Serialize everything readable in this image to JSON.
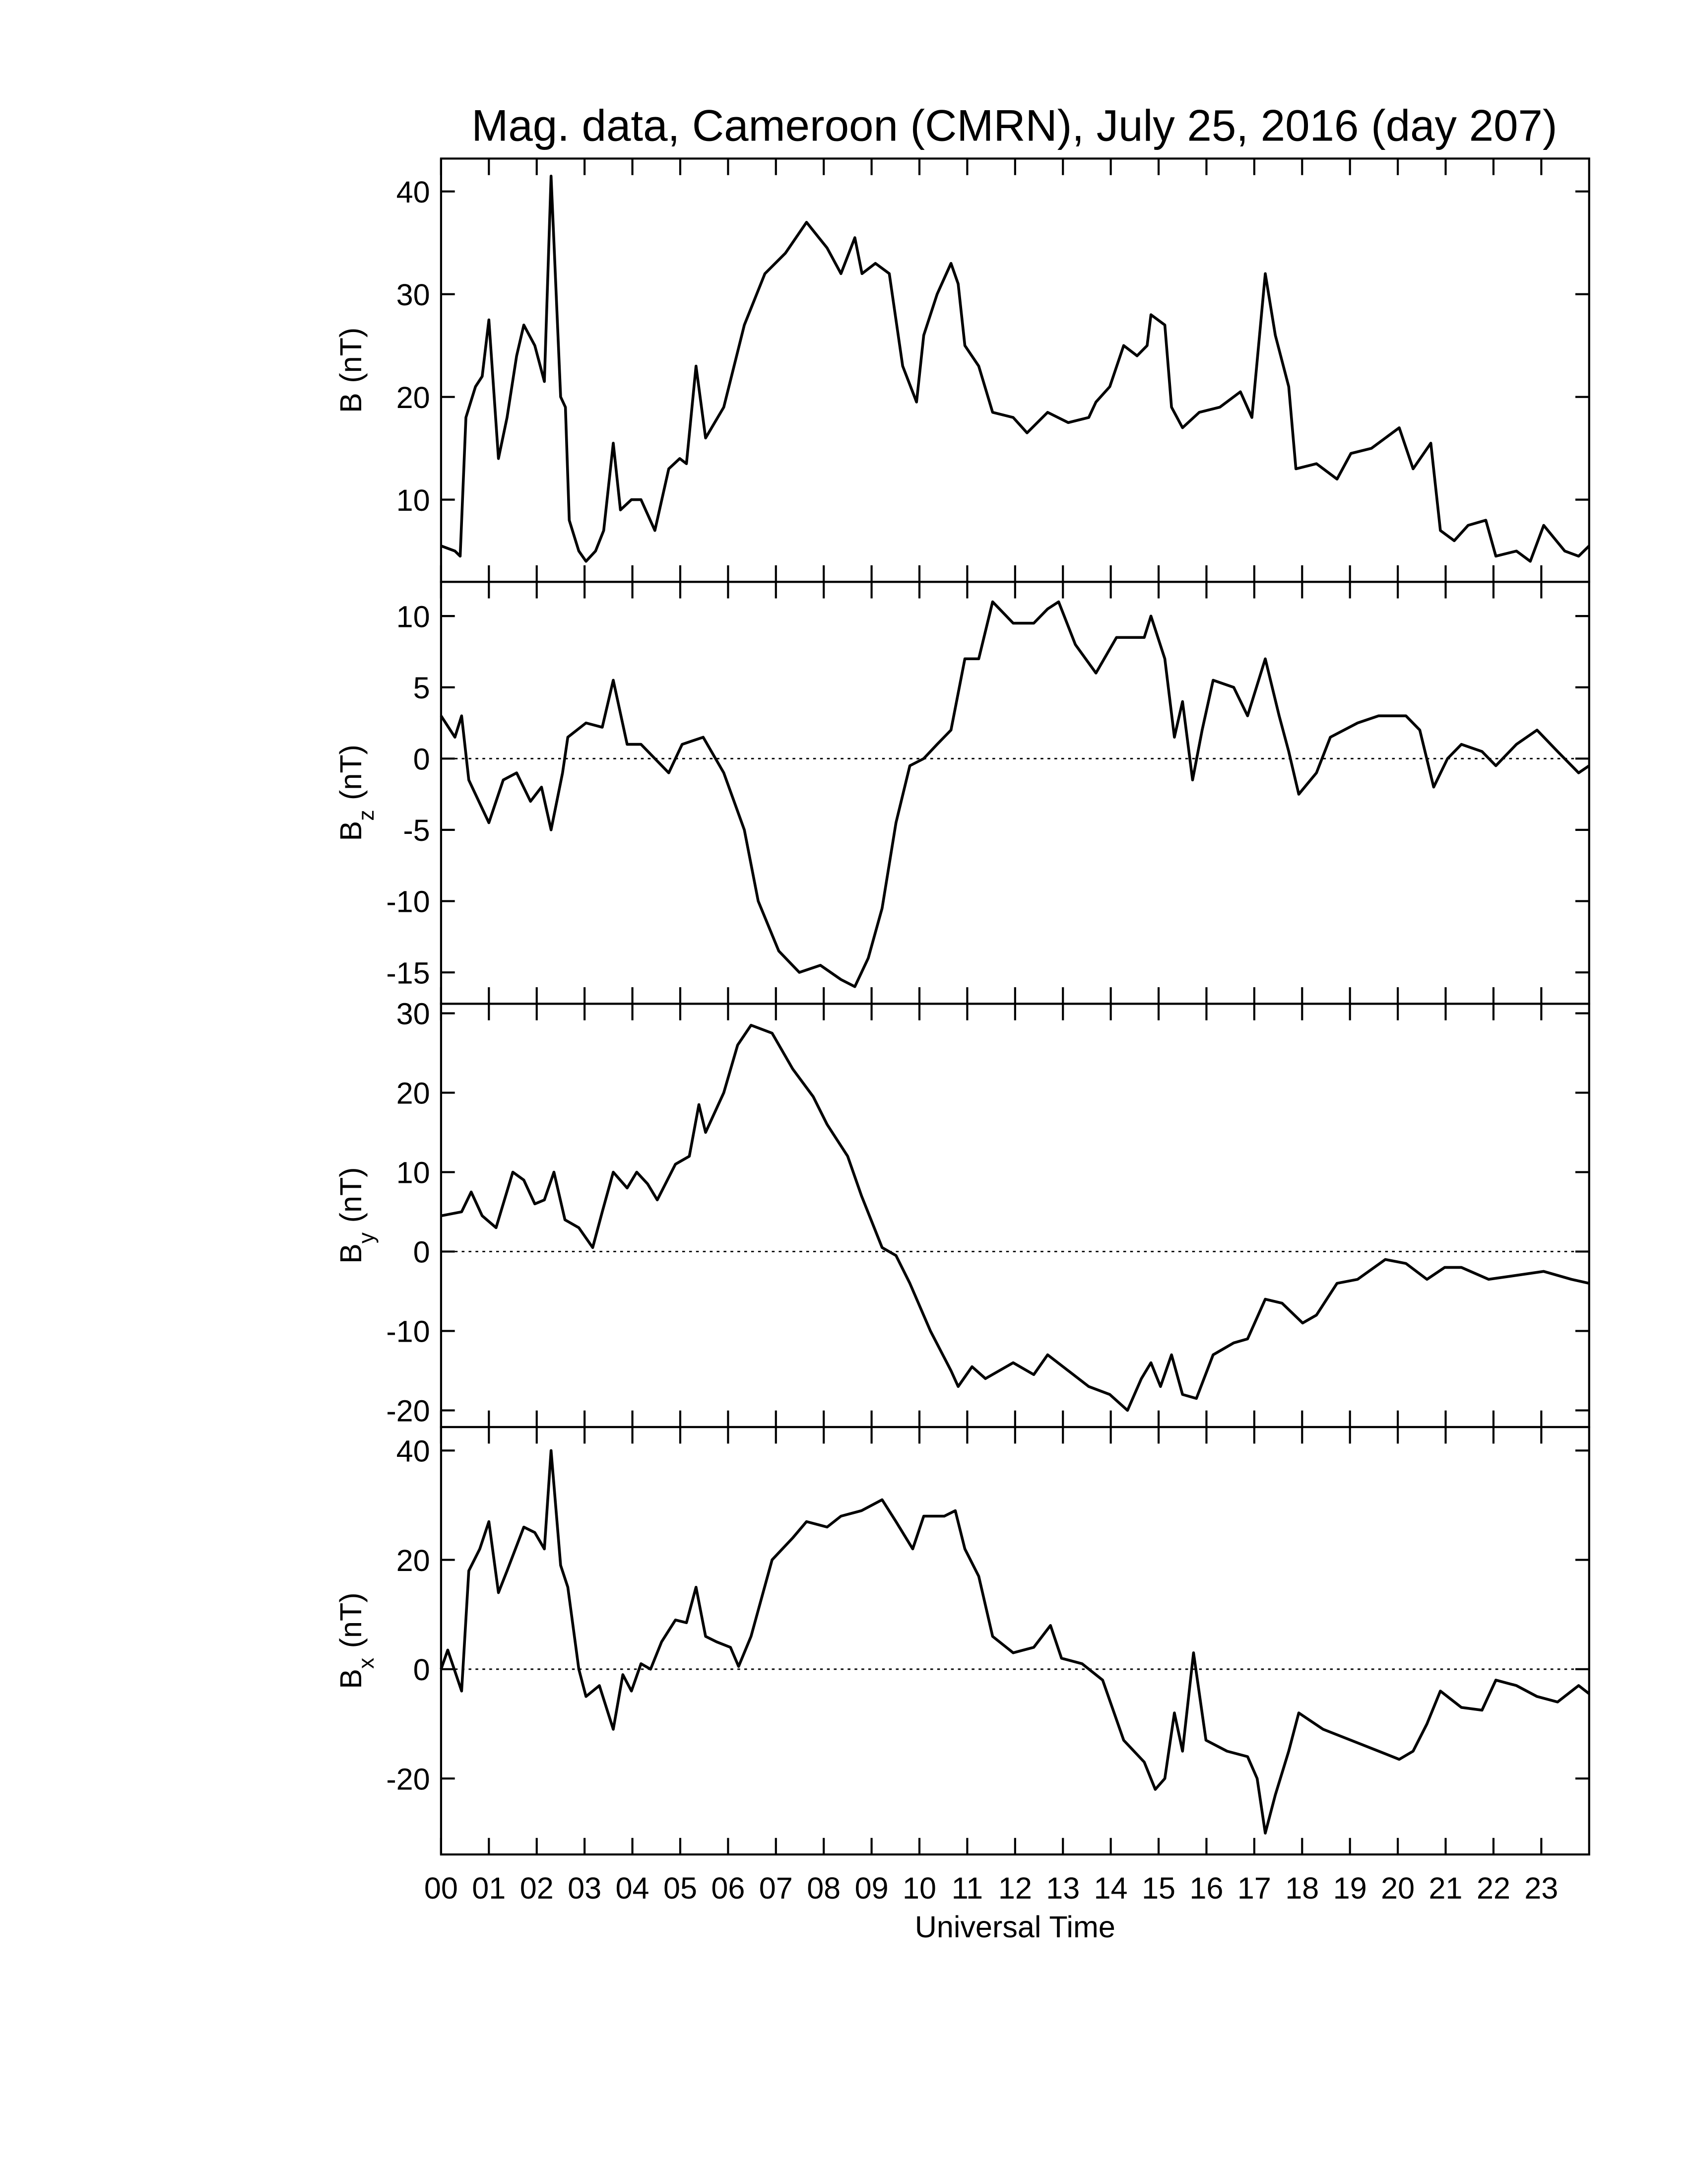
{
  "title": "Mag. data, Cameroon (CMRN), July 25, 2016 (day 207)",
  "chart_data": [
    {
      "type": "line",
      "ylabel": "B",
      "ylabel_unit": "(nT)",
      "xlim": [
        0,
        24
      ],
      "ylim": [
        2,
        43.2
      ],
      "yticks": [
        10,
        20,
        30,
        40
      ],
      "color": "#000000",
      "xticks": [
        {
          "value": 0,
          "label": "00"
        },
        {
          "value": 1,
          "label": "01"
        },
        {
          "value": 2,
          "label": "02"
        },
        {
          "value": 3,
          "label": "03"
        },
        {
          "value": 4,
          "label": "04"
        },
        {
          "value": 5,
          "label": "05"
        },
        {
          "value": 6,
          "label": "06"
        },
        {
          "value": 7,
          "label": "07"
        },
        {
          "value": 8,
          "label": "08"
        },
        {
          "value": 9,
          "label": "09"
        },
        {
          "value": 10,
          "label": "10"
        },
        {
          "value": 11,
          "label": "11"
        },
        {
          "value": 12,
          "label": "12"
        },
        {
          "value": 13,
          "label": "13"
        },
        {
          "value": 14,
          "label": "14"
        },
        {
          "value": 15,
          "label": "15"
        },
        {
          "value": 16,
          "label": "16"
        },
        {
          "value": 17,
          "label": "17"
        },
        {
          "value": 18,
          "label": "18"
        },
        {
          "value": 19,
          "label": "19"
        },
        {
          "value": 20,
          "label": "20"
        },
        {
          "value": 21,
          "label": "21"
        },
        {
          "value": 22,
          "label": "22"
        },
        {
          "value": 23,
          "label": "23"
        }
      ],
      "x": [
        0,
        0.29,
        0.4,
        0.52,
        0.72,
        0.86,
        1.0,
        1.2,
        1.38,
        1.58,
        1.73,
        1.96,
        2.16,
        2.3,
        2.5,
        2.6,
        2.68,
        2.88,
        3.03,
        3.23,
        3.4,
        3.6,
        3.75,
        3.98,
        4.18,
        4.47,
        4.76,
        4.99,
        5.13,
        5.33,
        5.53,
        5.91,
        6.34,
        6.77,
        7.2,
        7.64,
        8.07,
        8.36,
        8.65,
        8.8,
        9.08,
        9.37,
        9.65,
        9.94,
        10.09,
        10.37,
        10.66,
        10.81,
        10.95,
        11.24,
        11.53,
        11.96,
        12.25,
        12.68,
        13.11,
        13.54,
        13.69,
        13.98,
        14.27,
        14.55,
        14.76,
        14.84,
        15.13,
        15.27,
        15.5,
        15.85,
        16.28,
        16.71,
        16.95,
        17.23,
        17.44,
        17.72,
        17.87,
        18.3,
        18.73,
        19.02,
        19.45,
        19.74,
        20.03,
        20.32,
        20.69,
        20.89,
        21.18,
        21.47,
        21.84,
        22.05,
        22.48,
        22.77,
        23.05,
        23.49,
        23.78,
        24
      ],
      "values": [
        5.5,
        5,
        4.5,
        18,
        21,
        22,
        27.5,
        14,
        18,
        24,
        27,
        25,
        21.5,
        41.5,
        20,
        19,
        8,
        5,
        4,
        5,
        7,
        15.5,
        9,
        10,
        10,
        7,
        13,
        14,
        13.5,
        23,
        16,
        19,
        27,
        32,
        34,
        37,
        34.5,
        32,
        35.5,
        32,
        33,
        32,
        23,
        19.5,
        26,
        30,
        33,
        31,
        25,
        23,
        18.5,
        18,
        16.5,
        18.5,
        17.5,
        18,
        19.5,
        21,
        25,
        24,
        25,
        28,
        27,
        19,
        17,
        18.5,
        19,
        20.5,
        18,
        32,
        26,
        21,
        13,
        13.5,
        12,
        14.5,
        15,
        16,
        17,
        13,
        15.5,
        7,
        6,
        7.5,
        8,
        4.5,
        5,
        4,
        7.5,
        5,
        4.5,
        5.5
      ]
    },
    {
      "type": "line",
      "ylabel": "B",
      "ylabel_sub": "z",
      "ylabel_unit": "(nT)",
      "xlim": [
        0,
        24
      ],
      "ylim": [
        -17.2,
        12.4
      ],
      "yticks": [
        -15,
        -10,
        -5,
        0,
        5,
        10
      ],
      "color": "#000000",
      "zero_line": true,
      "xticks": [
        {
          "value": 0,
          "label": "00"
        },
        {
          "value": 1,
          "label": "01"
        },
        {
          "value": 2,
          "label": "02"
        },
        {
          "value": 3,
          "label": "03"
        },
        {
          "value": 4,
          "label": "04"
        },
        {
          "value": 5,
          "label": "05"
        },
        {
          "value": 6,
          "label": "06"
        },
        {
          "value": 7,
          "label": "07"
        },
        {
          "value": 8,
          "label": "08"
        },
        {
          "value": 9,
          "label": "09"
        },
        {
          "value": 10,
          "label": "10"
        },
        {
          "value": 11,
          "label": "11"
        },
        {
          "value": 12,
          "label": "12"
        },
        {
          "value": 13,
          "label": "13"
        },
        {
          "value": 14,
          "label": "14"
        },
        {
          "value": 15,
          "label": "15"
        },
        {
          "value": 16,
          "label": "16"
        },
        {
          "value": 17,
          "label": "17"
        },
        {
          "value": 18,
          "label": "18"
        },
        {
          "value": 19,
          "label": "19"
        },
        {
          "value": 20,
          "label": "20"
        },
        {
          "value": 21,
          "label": "21"
        },
        {
          "value": 22,
          "label": "22"
        },
        {
          "value": 23,
          "label": "23"
        }
      ],
      "x": [
        0,
        0.29,
        0.43,
        0.58,
        0.86,
        1.0,
        1.3,
        1.58,
        1.87,
        2.1,
        2.3,
        2.54,
        2.65,
        3.03,
        3.37,
        3.6,
        3.89,
        4.18,
        4.47,
        4.76,
        5.04,
        5.48,
        5.91,
        6.34,
        6.63,
        7.06,
        7.49,
        7.93,
        8.36,
        8.65,
        8.93,
        9.22,
        9.51,
        9.8,
        10.09,
        10.37,
        10.66,
        10.95,
        11.24,
        11.53,
        11.96,
        12.39,
        12.68,
        12.91,
        13.26,
        13.69,
        14.12,
        14.7,
        14.84,
        15.13,
        15.33,
        15.5,
        15.71,
        15.91,
        16.14,
        16.57,
        16.86,
        17.23,
        17.52,
        17.72,
        17.93,
        18.3,
        18.59,
        19.16,
        19.6,
        20.17,
        20.46,
        20.75,
        21.04,
        21.33,
        21.76,
        22.05,
        22.48,
        22.91,
        23.34,
        23.78,
        24
      ],
      "values": [
        3,
        1.5,
        3,
        -1.5,
        -3.5,
        -4.5,
        -1.5,
        -1,
        -3,
        -2,
        -5,
        -1,
        1.5,
        2.5,
        2.2,
        5.5,
        1,
        1,
        0,
        -1,
        1,
        1.5,
        -1,
        -5,
        -10,
        -13.5,
        -15,
        -14.5,
        -15.5,
        -16,
        -14,
        -10.5,
        -4.5,
        -0.5,
        0,
        1,
        2,
        7,
        7,
        11,
        9.5,
        9.5,
        10.5,
        11,
        8,
        6,
        8.5,
        8.5,
        10,
        7,
        1.5,
        4,
        -1.5,
        2,
        5.5,
        5,
        3,
        7,
        3,
        0.5,
        -2.5,
        -1,
        1.5,
        2.5,
        3,
        3,
        2,
        -2,
        0,
        1,
        0.5,
        -0.5,
        1,
        2,
        0.5,
        -1,
        -0.5
      ]
    },
    {
      "type": "line",
      "ylabel": "B",
      "ylabel_sub": "y",
      "ylabel_unit": "(nT)",
      "xlim": [
        0,
        24
      ],
      "ylim": [
        -22.1,
        31.2
      ],
      "yticks": [
        -20,
        -10,
        0,
        10,
        20,
        30
      ],
      "color": "#000000",
      "zero_line": true,
      "xticks": [
        {
          "value": 0,
          "label": "00"
        },
        {
          "value": 1,
          "label": "01"
        },
        {
          "value": 2,
          "label": "02"
        },
        {
          "value": 3,
          "label": "03"
        },
        {
          "value": 4,
          "label": "04"
        },
        {
          "value": 5,
          "label": "05"
        },
        {
          "value": 6,
          "label": "06"
        },
        {
          "value": 7,
          "label": "07"
        },
        {
          "value": 8,
          "label": "08"
        },
        {
          "value": 9,
          "label": "09"
        },
        {
          "value": 10,
          "label": "10"
        },
        {
          "value": 11,
          "label": "11"
        },
        {
          "value": 12,
          "label": "12"
        },
        {
          "value": 13,
          "label": "13"
        },
        {
          "value": 14,
          "label": "14"
        },
        {
          "value": 15,
          "label": "15"
        },
        {
          "value": 16,
          "label": "16"
        },
        {
          "value": 17,
          "label": "17"
        },
        {
          "value": 18,
          "label": "18"
        },
        {
          "value": 19,
          "label": "19"
        },
        {
          "value": 20,
          "label": "20"
        },
        {
          "value": 21,
          "label": "21"
        },
        {
          "value": 22,
          "label": "22"
        },
        {
          "value": 23,
          "label": "23"
        }
      ],
      "x": [
        0,
        0.43,
        0.63,
        0.86,
        1.15,
        1.5,
        1.73,
        1.96,
        2.16,
        2.36,
        2.59,
        2.88,
        3.17,
        3.37,
        3.6,
        3.89,
        4.09,
        4.32,
        4.52,
        4.9,
        5.19,
        5.39,
        5.53,
        5.91,
        6.2,
        6.48,
        6.92,
        7.35,
        7.78,
        8.07,
        8.5,
        8.79,
        9.22,
        9.51,
        9.8,
        10.23,
        10.66,
        10.81,
        11.1,
        11.38,
        11.96,
        12.39,
        12.68,
        13.11,
        13.54,
        13.98,
        14.35,
        14.64,
        14.84,
        15.04,
        15.27,
        15.5,
        15.79,
        16.14,
        16.57,
        16.86,
        17.23,
        17.58,
        18.01,
        18.3,
        18.73,
        19.16,
        19.74,
        20.17,
        20.61,
        20.98,
        21.33,
        21.9,
        22.48,
        23.05,
        23.63,
        24
      ],
      "values": [
        4.5,
        5,
        7.5,
        4.5,
        3,
        10,
        9,
        6,
        6.5,
        10,
        4,
        3,
        0.5,
        5,
        10,
        8,
        10,
        8.5,
        6.5,
        11,
        12,
        18.5,
        15,
        20,
        26,
        28.5,
        27.5,
        23,
        19.5,
        16,
        12,
        7,
        0.5,
        -0.5,
        -4,
        -10,
        -15,
        -17,
        -14.5,
        -16,
        -14,
        -15.5,
        -13,
        -15,
        -17,
        -18,
        -20,
        -16,
        -14,
        -17,
        -13,
        -18,
        -18.5,
        -13,
        -11.5,
        -11,
        -6,
        -6.5,
        -9,
        -8,
        -4,
        -3.5,
        -1,
        -1.5,
        -3.5,
        -2,
        -2,
        -3.5,
        -3,
        -2.5,
        -3.5,
        -4
      ]
    },
    {
      "type": "line",
      "ylabel": "B",
      "ylabel_sub": "x",
      "ylabel_unit": "(nT)",
      "xlabel": "Universal Time",
      "xlim": [
        0,
        24
      ],
      "ylim": [
        -33.9,
        44.3
      ],
      "yticks": [
        -20,
        0,
        20,
        40
      ],
      "color": "#000000",
      "zero_line": true,
      "xticks": [
        {
          "value": 0,
          "label": "00"
        },
        {
          "value": 1,
          "label": "01"
        },
        {
          "value": 2,
          "label": "02"
        },
        {
          "value": 3,
          "label": "03"
        },
        {
          "value": 4,
          "label": "04"
        },
        {
          "value": 5,
          "label": "05"
        },
        {
          "value": 6,
          "label": "06"
        },
        {
          "value": 7,
          "label": "07"
        },
        {
          "value": 8,
          "label": "08"
        },
        {
          "value": 9,
          "label": "09"
        },
        {
          "value": 10,
          "label": "10"
        },
        {
          "value": 11,
          "label": "11"
        },
        {
          "value": 12,
          "label": "12"
        },
        {
          "value": 13,
          "label": "13"
        },
        {
          "value": 14,
          "label": "14"
        },
        {
          "value": 15,
          "label": "15"
        },
        {
          "value": 16,
          "label": "16"
        },
        {
          "value": 17,
          "label": "17"
        },
        {
          "value": 18,
          "label": "18"
        },
        {
          "value": 19,
          "label": "19"
        },
        {
          "value": 20,
          "label": "20"
        },
        {
          "value": 21,
          "label": "21"
        },
        {
          "value": 22,
          "label": "22"
        },
        {
          "value": 23,
          "label": "23"
        }
      ],
      "x": [
        0,
        0.14,
        0.43,
        0.58,
        0.81,
        1.0,
        1.2,
        1.38,
        1.73,
        1.96,
        2.16,
        2.3,
        2.5,
        2.65,
        2.88,
        3.03,
        3.31,
        3.6,
        3.8,
        3.98,
        4.18,
        4.38,
        4.61,
        4.9,
        5.13,
        5.33,
        5.53,
        5.76,
        6.05,
        6.22,
        6.48,
        6.92,
        7.35,
        7.64,
        8.07,
        8.36,
        8.79,
        9.22,
        9.51,
        9.86,
        10.09,
        10.52,
        10.75,
        10.95,
        11.24,
        11.53,
        11.96,
        12.39,
        12.74,
        12.97,
        13.4,
        13.83,
        14.27,
        14.7,
        14.93,
        15.13,
        15.33,
        15.5,
        15.73,
        15.99,
        16.43,
        16.86,
        17.06,
        17.23,
        17.44,
        17.72,
        17.93,
        18.44,
        19.02,
        19.6,
        20.03,
        20.32,
        20.61,
        20.89,
        21.33,
        21.76,
        22.05,
        22.48,
        22.91,
        23.34,
        23.78,
        24
      ],
      "values": [
        0,
        3.5,
        -4,
        18,
        22,
        27,
        14,
        18,
        26,
        25,
        22,
        40,
        19,
        15,
        0,
        -5,
        -3,
        -11,
        -1,
        -4,
        1,
        0,
        5,
        9,
        8.5,
        15,
        6,
        5,
        4,
        0.5,
        6,
        20,
        24,
        27,
        26,
        28,
        29,
        31,
        27,
        22,
        28,
        28,
        29,
        22,
        17,
        6,
        3,
        4,
        8,
        2,
        1,
        -2,
        -13,
        -17,
        -22,
        -20,
        -8,
        -15,
        3,
        -13,
        -15,
        -16,
        -20,
        -30,
        -23,
        -15,
        -8,
        -11,
        -13,
        -15,
        -16.5,
        -15,
        -10,
        -4,
        -7,
        -7.5,
        -2,
        -3,
        -5,
        -6,
        -3,
        -4.5
      ]
    }
  ]
}
